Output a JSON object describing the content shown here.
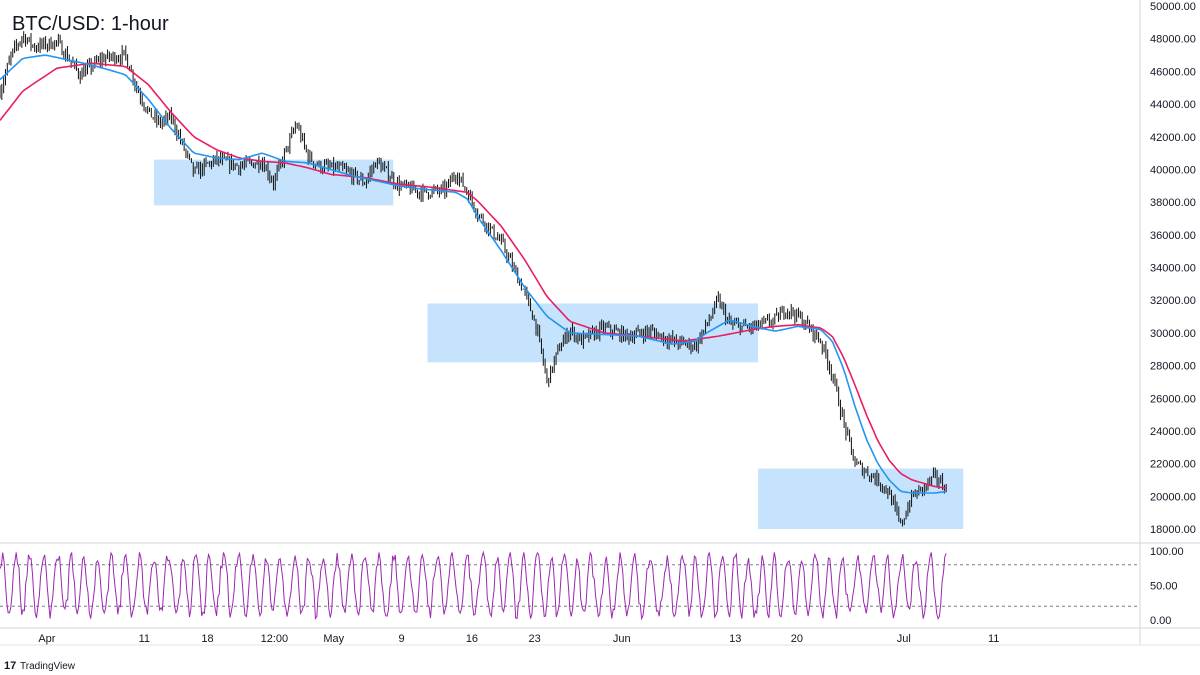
{
  "chart_data": {
    "type": "candlestick",
    "title": "BTC/USD: 1-hour",
    "price_axis": {
      "range": [
        17000,
        50000
      ],
      "ticks": [
        "50000.00",
        "48000.00",
        "46000.00",
        "44000.00",
        "42000.00",
        "40000.00",
        "38000.00",
        "36000.00",
        "34000.00",
        "32000.00",
        "30000.00",
        "28000.00",
        "26000.00",
        "24000.00",
        "22000.00",
        "20000.00",
        "18000.00"
      ]
    },
    "time_axis": {
      "ticks": [
        "Apr",
        "11",
        "18",
        "12:00",
        "May",
        "9",
        "16",
        "23",
        "Jun",
        "13",
        "20",
        "Jul",
        "11"
      ]
    },
    "price_path": [
      [
        0,
        44800
      ],
      [
        1,
        47000
      ],
      [
        2,
        48200
      ],
      [
        3,
        47500
      ],
      [
        5,
        47800
      ],
      [
        7,
        45800
      ],
      [
        9,
        46800
      ],
      [
        11,
        47000
      ],
      [
        12,
        45000
      ],
      [
        13,
        43500
      ],
      [
        14,
        42800
      ],
      [
        15,
        43200
      ],
      [
        16,
        41500
      ],
      [
        17,
        39800
      ],
      [
        19,
        40600
      ],
      [
        21,
        40200
      ],
      [
        23,
        40500
      ],
      [
        24,
        39200
      ],
      [
        25,
        41000
      ],
      [
        26,
        42800
      ],
      [
        27,
        40800
      ],
      [
        28,
        40200
      ],
      [
        30,
        40000
      ],
      [
        32,
        39200
      ],
      [
        33,
        40500
      ],
      [
        35,
        39000
      ],
      [
        37,
        38600
      ],
      [
        39,
        38700
      ],
      [
        40,
        39800
      ],
      [
        41,
        38600
      ],
      [
        42,
        37200
      ],
      [
        44,
        35500
      ],
      [
        46,
        32500
      ],
      [
        47,
        30500
      ],
      [
        48,
        27000
      ],
      [
        49,
        29000
      ],
      [
        50,
        30200
      ],
      [
        51,
        29500
      ],
      [
        53,
        30300
      ],
      [
        55,
        29800
      ],
      [
        57,
        30100
      ],
      [
        59,
        29500
      ],
      [
        61,
        29200
      ],
      [
        62,
        30500
      ],
      [
        63,
        32000
      ],
      [
        64,
        30500
      ],
      [
        66,
        30300
      ],
      [
        68,
        30800
      ],
      [
        69,
        31500
      ],
      [
        70,
        31000
      ],
      [
        71,
        30300
      ],
      [
        72,
        29500
      ],
      [
        73,
        27500
      ],
      [
        74,
        24500
      ],
      [
        75,
        22000
      ],
      [
        76,
        21500
      ],
      [
        77,
        21000
      ],
      [
        78,
        20200
      ],
      [
        79,
        18200
      ],
      [
        80,
        20000
      ],
      [
        81,
        20500
      ],
      [
        82,
        21200
      ],
      [
        83,
        20500
      ]
    ],
    "ema_fast_path": [
      [
        0,
        45500
      ],
      [
        2,
        46800
      ],
      [
        4,
        47000
      ],
      [
        8,
        46400
      ],
      [
        11,
        45800
      ],
      [
        13,
        44300
      ],
      [
        15,
        42500
      ],
      [
        17,
        41000
      ],
      [
        19,
        40700
      ],
      [
        21,
        40600
      ],
      [
        23,
        41000
      ],
      [
        25,
        40500
      ],
      [
        27,
        40400
      ],
      [
        29,
        40000
      ],
      [
        31,
        39600
      ],
      [
        33,
        39300
      ],
      [
        35,
        39000
      ],
      [
        37,
        38800
      ],
      [
        40,
        38600
      ],
      [
        41,
        38200
      ],
      [
        42,
        37000
      ],
      [
        44,
        35000
      ],
      [
        46,
        32800
      ],
      [
        48,
        31000
      ],
      [
        50,
        30000
      ],
      [
        53,
        29900
      ],
      [
        56,
        29800
      ],
      [
        59,
        29300
      ],
      [
        61,
        29500
      ],
      [
        62,
        30000
      ],
      [
        64,
        30800
      ],
      [
        66,
        30400
      ],
      [
        68,
        30100
      ],
      [
        70,
        30400
      ],
      [
        72,
        30200
      ],
      [
        73,
        29500
      ],
      [
        74,
        27800
      ],
      [
        75,
        25500
      ],
      [
        76,
        23500
      ],
      [
        77,
        22000
      ],
      [
        78,
        21000
      ],
      [
        79,
        20300
      ],
      [
        80,
        20200
      ],
      [
        82,
        20200
      ],
      [
        83,
        20300
      ]
    ],
    "ema_slow_path": [
      [
        0,
        43000
      ],
      [
        2,
        44800
      ],
      [
        5,
        46200
      ],
      [
        8,
        46500
      ],
      [
        11,
        46300
      ],
      [
        13,
        45200
      ],
      [
        15,
        43500
      ],
      [
        17,
        42000
      ],
      [
        19,
        41200
      ],
      [
        21,
        40700
      ],
      [
        23,
        40500
      ],
      [
        25,
        40400
      ],
      [
        27,
        40100
      ],
      [
        29,
        39700
      ],
      [
        32,
        39500
      ],
      [
        35,
        39100
      ],
      [
        38,
        38900
      ],
      [
        41,
        38600
      ],
      [
        42,
        38000
      ],
      [
        44,
        36500
      ],
      [
        46,
        34500
      ],
      [
        48,
        32200
      ],
      [
        50,
        30700
      ],
      [
        53,
        30000
      ],
      [
        56,
        29800
      ],
      [
        60,
        29500
      ],
      [
        63,
        29800
      ],
      [
        66,
        30200
      ],
      [
        68,
        30400
      ],
      [
        70,
        30500
      ],
      [
        72,
        30300
      ],
      [
        73,
        29800
      ],
      [
        74,
        28500
      ],
      [
        75,
        26800
      ],
      [
        76,
        25000
      ],
      [
        77,
        23400
      ],
      [
        78,
        22200
      ],
      [
        79,
        21400
      ],
      [
        80,
        21000
      ],
      [
        82,
        20600
      ],
      [
        83,
        20500
      ]
    ],
    "consolidation_zones": [
      {
        "x0": 13.5,
        "x1": 34.5,
        "y0": 37800,
        "y1": 40600
      },
      {
        "x0": 37.5,
        "x1": 66.5,
        "y0": 28200,
        "y1": 31800
      },
      {
        "x0": 66.5,
        "x1": 84.5,
        "y0": 18000,
        "y1": 21700
      }
    ],
    "oscillator": {
      "range": [
        0,
        100
      ],
      "ticks": [
        "100.00",
        "50.00",
        "0.00"
      ],
      "levels": [
        80,
        20
      ]
    },
    "colors": {
      "candles": "#111111",
      "ema_fast": "#2196f3",
      "ema_slow": "#e91e63",
      "zone": "#bbdefb",
      "oscillator": "#9c27b0"
    }
  },
  "brand": {
    "name": "TradingView"
  }
}
